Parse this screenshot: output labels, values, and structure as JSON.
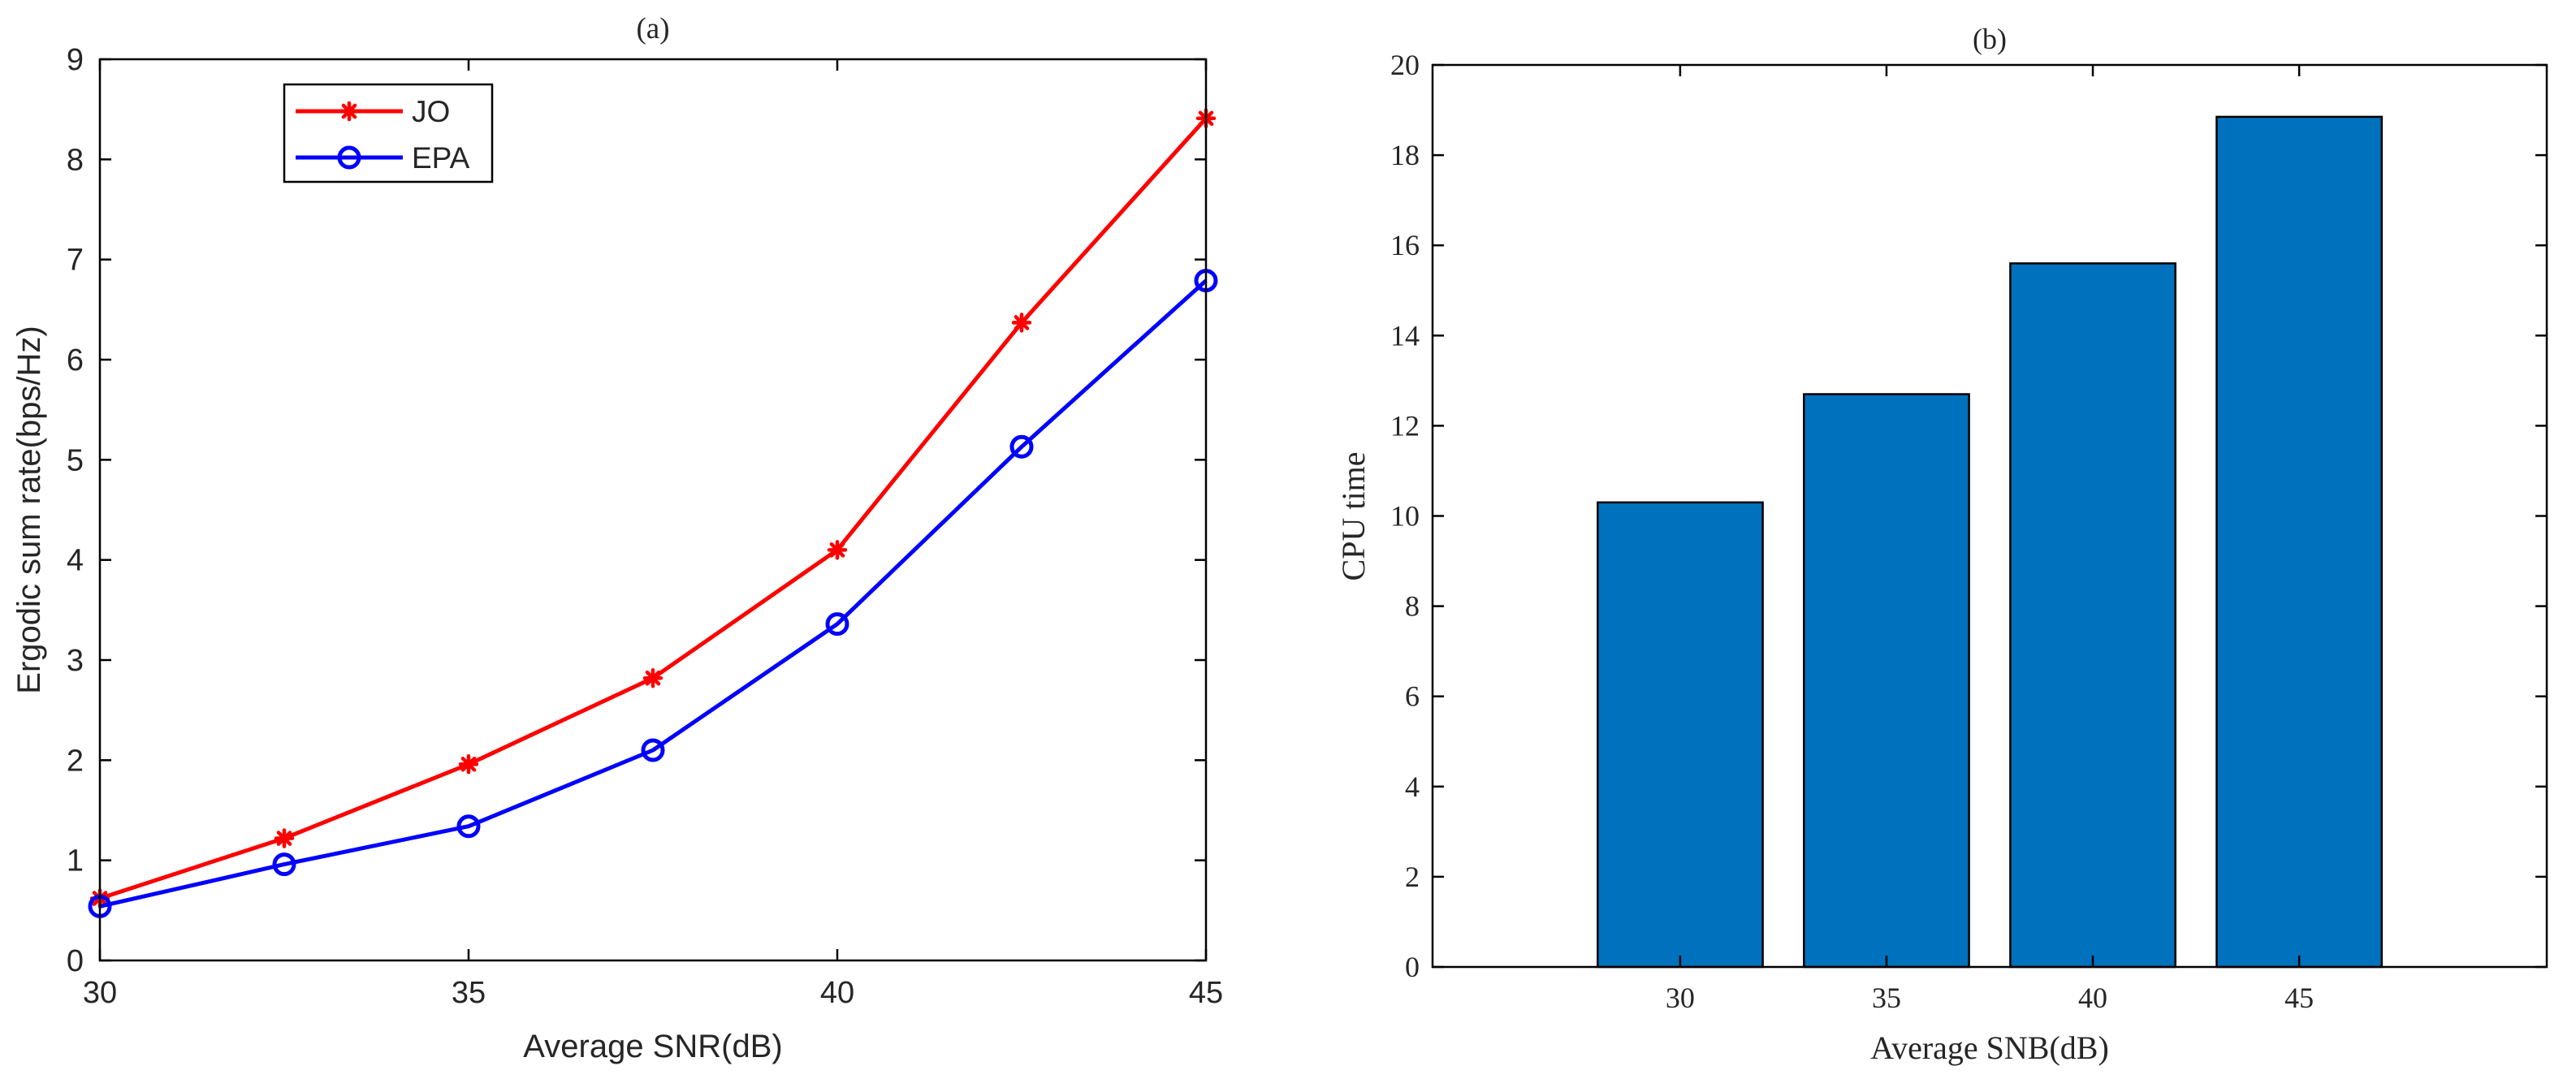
{
  "chart_data": [
    {
      "type": "line",
      "title": "(a)",
      "xlabel": "Average SNR(dB)",
      "ylabel": "Ergodic sum rate(bps/Hz)",
      "xlim": [
        30,
        45
      ],
      "ylim": [
        0,
        9
      ],
      "xticks": [
        30,
        35,
        40,
        45
      ],
      "yticks": [
        0,
        1,
        2,
        3,
        4,
        5,
        6,
        7,
        8,
        9
      ],
      "x": [
        30,
        32.5,
        35,
        37.5,
        40,
        42.5,
        45
      ],
      "series": [
        {
          "name": "JO",
          "color": "#ff0000",
          "marker": "asterisk",
          "values": [
            0.62,
            1.22,
            1.96,
            2.82,
            4.1,
            6.37,
            8.41
          ]
        },
        {
          "name": "EPA",
          "color": "#0000ff",
          "marker": "circle",
          "values": [
            0.54,
            0.96,
            1.34,
            2.1,
            3.36,
            5.13,
            6.79
          ]
        }
      ],
      "legend": "top-left",
      "grid": false
    },
    {
      "type": "bar",
      "title": "(b)",
      "xlabel": "Average SNB(dB)",
      "ylabel": "CPU time",
      "categories": [
        "30",
        "35",
        "40",
        "45"
      ],
      "values": [
        10.3,
        12.7,
        15.6,
        18.85
      ],
      "ylim": [
        0,
        20
      ],
      "yticks": [
        0,
        2,
        4,
        6,
        8,
        10,
        12,
        14,
        16,
        18,
        20
      ],
      "bar_color": "#0072bd",
      "grid": false
    }
  ]
}
